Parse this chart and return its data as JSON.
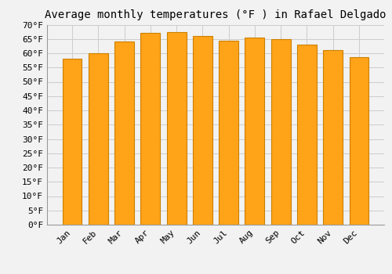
{
  "title": "Average monthly temperatures (°F ) in Rafael Delgado",
  "months": [
    "Jan",
    "Feb",
    "Mar",
    "Apr",
    "May",
    "Jun",
    "Jul",
    "Aug",
    "Sep",
    "Oct",
    "Nov",
    "Dec"
  ],
  "temperatures": [
    58.0,
    60.0,
    64.0,
    67.0,
    67.5,
    66.0,
    64.5,
    65.5,
    65.0,
    63.0,
    61.0,
    58.5
  ],
  "bar_color": "#FFA319",
  "bar_edge_color": "#CC8000",
  "background_color": "#F2F2F2",
  "grid_color": "#CCCCCC",
  "ylim": [
    0,
    70
  ],
  "ytick_step": 5,
  "title_fontsize": 10,
  "tick_fontsize": 8,
  "figsize": [
    5.0,
    3.5
  ],
  "dpi": 100
}
